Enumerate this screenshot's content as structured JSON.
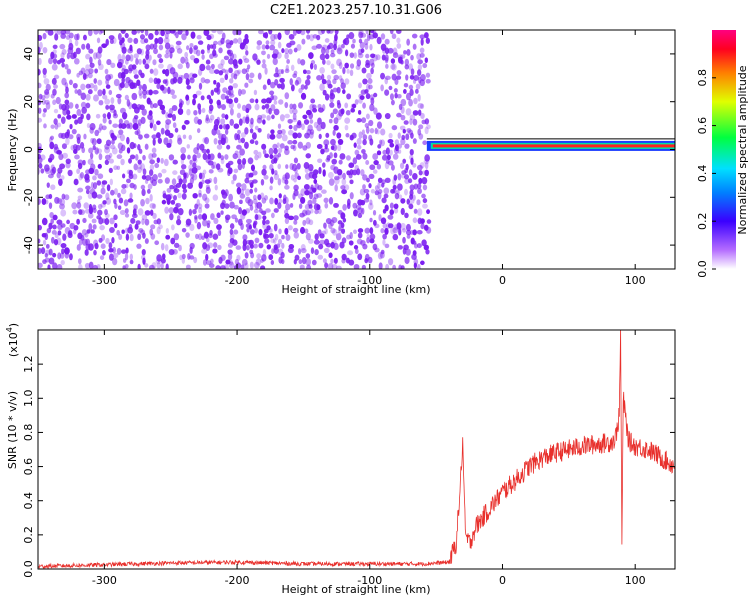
{
  "title": "C2E1.2023.257.10.31.G06",
  "colors": {
    "snr_line": "#e8302c",
    "spectrogram_dots": "#7a1cf0",
    "axis": "#000000"
  },
  "chart_data": [
    {
      "type": "heatmap",
      "xlabel": "Height of straight line (km)",
      "ylabel": "Frequency (Hz)",
      "xlim": [
        -350,
        130
      ],
      "ylim": [
        -50,
        50
      ],
      "x_ticks": [
        -300,
        -200,
        -100,
        0,
        100
      ],
      "x_tick_labels": [
        "-300",
        "-200",
        "-100",
        "0",
        "100"
      ],
      "y_ticks": [
        -40,
        -20,
        0,
        20,
        40
      ],
      "y_tick_labels": [
        "-40",
        "-20",
        "0",
        "20",
        "40"
      ],
      "noise_region_x_end": -57,
      "signal_frequency_hz": 1.5,
      "colormap": "rainbow",
      "colorbar": {
        "label": "Normalized spectral amplitude",
        "range": [
          0.0,
          1.0
        ],
        "ticks": [
          0.0,
          0.2,
          0.4,
          0.6,
          0.8
        ],
        "tick_labels": [
          "0.0",
          "0.2",
          "0.4",
          "0.6",
          "0.8"
        ]
      }
    },
    {
      "type": "line",
      "xlabel": "Height of straight line (km)",
      "ylabel": "SNR (10 * v/v)",
      "scale_note": "(x10",
      "scale_exp": "4",
      "scale_close": ")",
      "xlim": [
        -350,
        130
      ],
      "ylim": [
        0,
        14000
      ],
      "x_ticks": [
        -300,
        -200,
        -100,
        0,
        100
      ],
      "x_tick_labels": [
        "-300",
        "-200",
        "-100",
        "0",
        "100"
      ],
      "y_ticks": [
        0,
        2000,
        4000,
        6000,
        8000,
        10000,
        12000
      ],
      "y_tick_labels": [
        "0.0",
        "0.2",
        "0.4",
        "0.6",
        "0.8",
        "1.0",
        "1.2"
      ],
      "series": [
        {
          "x": [
            -350,
            -300,
            -250,
            -200,
            -150,
            -100,
            -60,
            -40,
            -35,
            -32,
            -30,
            -28,
            -25,
            -20,
            -15,
            -10,
            -5,
            0,
            10,
            20,
            30,
            40,
            50,
            60,
            70,
            80,
            85,
            88,
            89,
            90,
            91,
            95,
            100,
            110,
            120,
            130
          ],
          "y": [
            150,
            250,
            350,
            400,
            300,
            300,
            300,
            400,
            1500,
            4500,
            7500,
            2000,
            1500,
            2500,
            3000,
            3500,
            4000,
            4500,
            5200,
            6000,
            6500,
            6800,
            7000,
            7200,
            7300,
            7400,
            7600,
            9000,
            13800,
            1500,
            10000,
            7500,
            7200,
            7000,
            6500,
            6000
          ]
        }
      ]
    }
  ]
}
